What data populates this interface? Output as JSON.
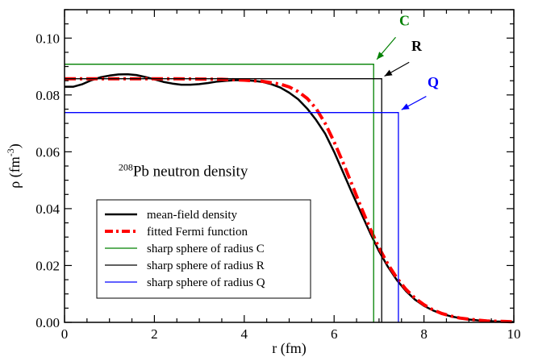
{
  "chart_data": {
    "type": "line",
    "xlabel": "r (fm)",
    "ylabel_main": "ρ (fm",
    "ylabel_sup": "-3",
    "ylabel_close": ")",
    "xlim": [
      0,
      10
    ],
    "ylim": [
      0,
      0.11
    ],
    "xticks": [
      0,
      2,
      4,
      6,
      8,
      10
    ],
    "xtick_labels": [
      "0",
      "2",
      "4",
      "6",
      "8",
      "10"
    ],
    "yticks": [
      0,
      0.02,
      0.04,
      0.06,
      0.08,
      0.1
    ],
    "ytick_labels": [
      "0.00",
      "0.02",
      "0.04",
      "0.06",
      "0.08",
      "0.10"
    ],
    "annotation": {
      "sup": "208",
      "text": "Pb neutron density",
      "x": 1.2,
      "y": 0.0515
    },
    "legend": {
      "entries": [
        {
          "label": "mean-field density",
          "color": "#000000",
          "style": "solid-thick"
        },
        {
          "label": "fitted Fermi function",
          "color": "#ff0000",
          "style": "dashdot-thick"
        },
        {
          "label": "sharp sphere of radius C",
          "color": "#008000",
          "style": "solid-thin"
        },
        {
          "label": "sharp sphere of radius R",
          "color": "#000000",
          "style": "solid-thin"
        },
        {
          "label": "sharp sphere of radius Q",
          "color": "#0000ff",
          "style": "solid-thin"
        }
      ]
    },
    "sharp_spheres": [
      {
        "name": "C",
        "radius": 6.88,
        "density": 0.0908,
        "color": "#008000",
        "label_pos": [
          7.45,
          0.1045
        ],
        "arrow_from": [
          7.37,
          0.1003
        ],
        "arrow_to": [
          6.95,
          0.0925
        ]
      },
      {
        "name": "R",
        "radius": 7.06,
        "density": 0.0857,
        "color": "#000000",
        "label_pos": [
          7.72,
          0.0955
        ],
        "arrow_from": [
          7.67,
          0.0915
        ],
        "arrow_to": [
          7.12,
          0.0866
        ]
      },
      {
        "name": "Q",
        "radius": 7.43,
        "density": 0.0738,
        "color": "#0000ff",
        "label_pos": [
          8.08,
          0.0828
        ],
        "arrow_from": [
          8.05,
          0.0795
        ],
        "arrow_to": [
          7.5,
          0.0748
        ]
      }
    ],
    "series": [
      {
        "name": "mean-field density",
        "color": "#000000",
        "x": [
          0,
          0.2,
          0.4,
          0.6,
          0.8,
          1.0,
          1.2,
          1.4,
          1.6,
          1.8,
          2.0,
          2.2,
          2.4,
          2.6,
          2.8,
          3.0,
          3.2,
          3.4,
          3.6,
          3.8,
          4.0,
          4.2,
          4.4,
          4.6,
          4.8,
          5.0,
          5.2,
          5.4,
          5.6,
          5.8,
          6.0,
          6.2,
          6.4,
          6.6,
          6.8,
          7.0,
          7.2,
          7.4,
          7.6,
          7.8,
          8.0,
          8.2,
          8.4,
          8.6,
          8.8,
          9.0,
          9.2,
          9.4,
          9.6,
          9.8,
          10.0
        ],
        "y": [
          0.0829,
          0.0829,
          0.0838,
          0.0852,
          0.0862,
          0.0868,
          0.0872,
          0.0873,
          0.087,
          0.0863,
          0.0855,
          0.0846,
          0.084,
          0.0836,
          0.0836,
          0.0838,
          0.0842,
          0.0847,
          0.085,
          0.0852,
          0.0852,
          0.085,
          0.0846,
          0.0838,
          0.0826,
          0.0808,
          0.0785,
          0.0752,
          0.0712,
          0.0664,
          0.06,
          0.0528,
          0.0455,
          0.0385,
          0.0315,
          0.025,
          0.0195,
          0.0148,
          0.011,
          0.008,
          0.0058,
          0.0042,
          0.003,
          0.0021,
          0.0015,
          0.001,
          0.0007,
          0.0005,
          0.0003,
          0.0002,
          0.0001
        ]
      },
      {
        "name": "fitted Fermi function",
        "color": "#ff0000",
        "x": [
          0,
          0.5,
          1.0,
          1.5,
          2.0,
          2.5,
          3.0,
          3.5,
          4.0,
          4.4,
          4.8,
          5.0,
          5.2,
          5.4,
          5.6,
          5.8,
          6.0,
          6.2,
          6.4,
          6.6,
          6.8,
          7.0,
          7.2,
          7.4,
          7.6,
          7.8,
          8.0,
          8.2,
          8.4,
          8.6,
          8.8,
          9.0,
          9.2,
          9.4,
          9.6,
          9.8,
          10.0
        ],
        "y": [
          0.0857,
          0.0857,
          0.0857,
          0.0857,
          0.0857,
          0.0857,
          0.0856,
          0.0855,
          0.0852,
          0.0848,
          0.0838,
          0.0828,
          0.0812,
          0.0788,
          0.0752,
          0.07,
          0.0635,
          0.0562,
          0.0484,
          0.0405,
          0.033,
          0.0262,
          0.0204,
          0.0155,
          0.0116,
          0.0085,
          0.0062,
          0.0044,
          0.0031,
          0.0022,
          0.0015,
          0.0011,
          0.0008,
          0.0005,
          0.0004,
          0.0003,
          0.0002
        ]
      }
    ]
  }
}
